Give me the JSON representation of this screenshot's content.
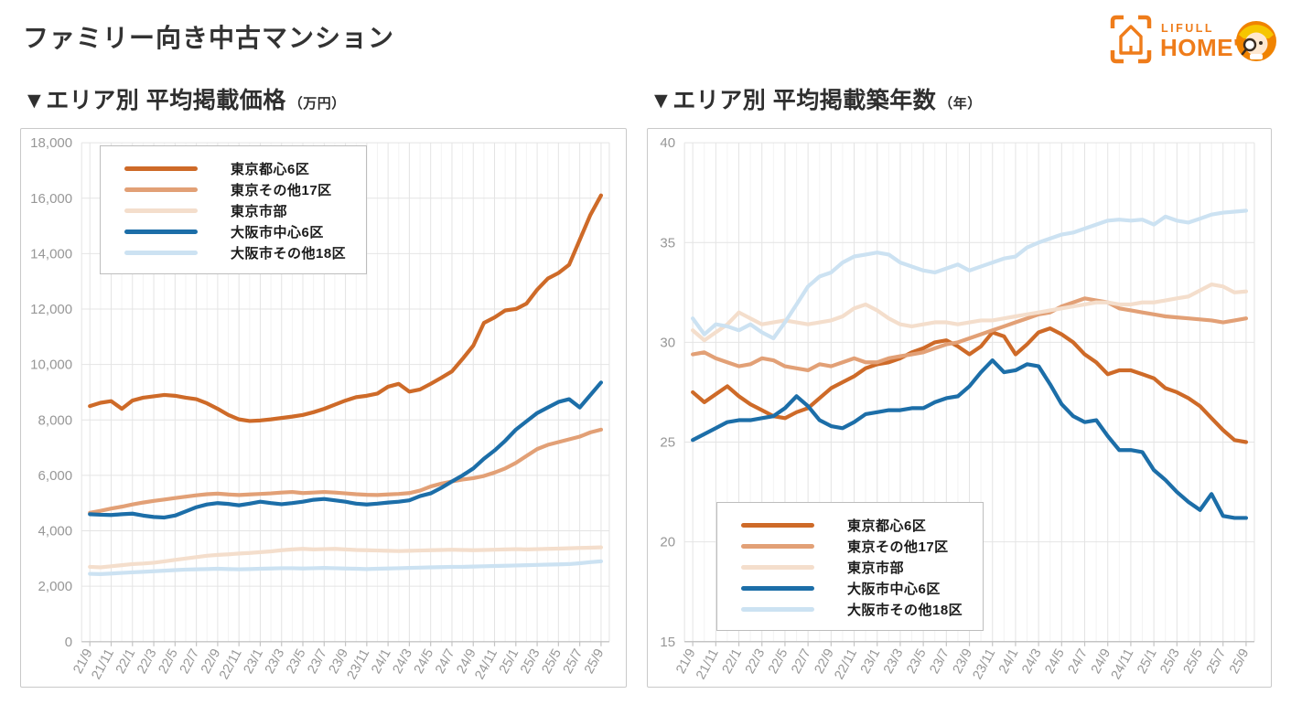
{
  "page": {
    "title": "ファミリー向き中古マンション"
  },
  "logo": {
    "brand_top": "LIFULL",
    "brand_bottom": "HOME'S",
    "brand_color": "#EF7C1A",
    "house_icon": "house-in-brackets-icon",
    "mascot_icon": "homes-kun-mascot-icon"
  },
  "colors": {
    "title_text": "#333333",
    "axis_text": "#979797",
    "grid_major": "#e4e4e4",
    "grid_minor": "#f3f3f3",
    "axis_line": "#c4c4c4",
    "panel_border": "#c9c9c9"
  },
  "chart_data": [
    {
      "type": "line",
      "title": "▼エリア別 平均掲載価格",
      "unit": "（万円）",
      "grid": true,
      "legend_position": "top-left",
      "legend_offset": {
        "x": 86,
        "y": 18
      },
      "ylim": [
        0,
        18000
      ],
      "yticks": [
        {
          "v": 0,
          "t": "0"
        },
        {
          "v": 2000,
          "t": "2,000"
        },
        {
          "v": 4000,
          "t": "4,000"
        },
        {
          "v": 6000,
          "t": "6,000"
        },
        {
          "v": 8000,
          "t": "8,000"
        },
        {
          "v": 10000,
          "t": "10,000"
        },
        {
          "v": 12000,
          "t": "12,000"
        },
        {
          "v": 14000,
          "t": "14,000"
        },
        {
          "v": 16000,
          "t": "16,000"
        },
        {
          "v": 18000,
          "t": "18,000"
        }
      ],
      "x_label_every": 2,
      "x": [
        "21/9",
        "21/10",
        "21/11",
        "21/12",
        "22/1",
        "22/2",
        "22/3",
        "22/4",
        "22/5",
        "22/6",
        "22/7",
        "22/8",
        "22/9",
        "22/10",
        "22/11",
        "22/12",
        "23/1",
        "23/2",
        "23/3",
        "23/4",
        "23/5",
        "23/6",
        "23/7",
        "23/8",
        "23/9",
        "23/10",
        "23/11",
        "23/12",
        "24/1",
        "24/2",
        "24/3",
        "24/4",
        "24/5",
        "24/6",
        "24/7",
        "24/8",
        "24/9",
        "24/10",
        "24/11",
        "24/12",
        "25/1",
        "25/2",
        "25/3",
        "25/4",
        "25/5",
        "25/6",
        "25/7",
        "25/8",
        "25/9"
      ],
      "series": [
        {
          "name": "東京都心6区",
          "color": "#CE6A28",
          "values": [
            8500,
            8620,
            8680,
            8400,
            8700,
            8800,
            8850,
            8900,
            8870,
            8800,
            8750,
            8600,
            8400,
            8180,
            8020,
            7960,
            7980,
            8020,
            8070,
            8120,
            8180,
            8280,
            8400,
            8550,
            8700,
            8820,
            8870,
            8950,
            9200,
            9300,
            9020,
            9100,
            9300,
            9520,
            9750,
            10200,
            10680,
            11500,
            11700,
            11950,
            12000,
            12200,
            12700,
            13100,
            13300,
            13600,
            14500,
            15400,
            16100
          ]
        },
        {
          "name": "東京その他17区",
          "color": "#E2A076",
          "values": [
            4650,
            4720,
            4800,
            4870,
            4950,
            5020,
            5080,
            5130,
            5180,
            5230,
            5280,
            5320,
            5340,
            5310,
            5290,
            5310,
            5330,
            5350,
            5380,
            5400,
            5360,
            5380,
            5400,
            5380,
            5350,
            5320,
            5300,
            5290,
            5310,
            5330,
            5360,
            5450,
            5600,
            5700,
            5780,
            5850,
            5900,
            5980,
            6100,
            6250,
            6450,
            6700,
            6950,
            7100,
            7200,
            7300,
            7400,
            7550,
            7650
          ]
        },
        {
          "name": "東京市部",
          "color": "#F4DECC",
          "values": [
            2700,
            2680,
            2720,
            2760,
            2800,
            2820,
            2850,
            2900,
            2950,
            3000,
            3050,
            3100,
            3130,
            3150,
            3180,
            3200,
            3230,
            3260,
            3300,
            3330,
            3350,
            3330,
            3340,
            3350,
            3330,
            3310,
            3300,
            3290,
            3280,
            3270,
            3280,
            3290,
            3300,
            3310,
            3320,
            3310,
            3300,
            3310,
            3320,
            3330,
            3340,
            3330,
            3340,
            3350,
            3360,
            3370,
            3380,
            3390,
            3400
          ]
        },
        {
          "name": "大阪市中心6区",
          "color": "#1C6EA8",
          "values": [
            4600,
            4580,
            4570,
            4600,
            4620,
            4550,
            4500,
            4480,
            4550,
            4700,
            4850,
            4950,
            5000,
            4970,
            4920,
            4980,
            5050,
            5000,
            4960,
            5000,
            5050,
            5120,
            5150,
            5100,
            5050,
            4980,
            4950,
            4980,
            5020,
            5050,
            5100,
            5250,
            5350,
            5550,
            5780,
            6000,
            6250,
            6600,
            6900,
            7250,
            7650,
            7950,
            8250,
            8450,
            8650,
            8750,
            8450,
            8900,
            9350
          ]
        },
        {
          "name": "大阪市その他18区",
          "color": "#CCE2F2",
          "values": [
            2450,
            2440,
            2460,
            2480,
            2500,
            2520,
            2540,
            2560,
            2580,
            2600,
            2610,
            2620,
            2630,
            2620,
            2610,
            2620,
            2630,
            2640,
            2650,
            2650,
            2640,
            2650,
            2660,
            2650,
            2640,
            2630,
            2620,
            2630,
            2640,
            2650,
            2660,
            2670,
            2680,
            2690,
            2700,
            2700,
            2710,
            2720,
            2730,
            2740,
            2750,
            2760,
            2770,
            2780,
            2790,
            2800,
            2830,
            2870,
            2900
          ]
        }
      ]
    },
    {
      "type": "line",
      "title": "▼エリア別 平均掲載築年数",
      "unit": "（年）",
      "grid": true,
      "legend_position": "bottom-left",
      "legend_offset": {
        "x": 75,
        "y": 408
      },
      "ylim": [
        15,
        40
      ],
      "yticks": [
        {
          "v": 15,
          "t": "15"
        },
        {
          "v": 20,
          "t": "20"
        },
        {
          "v": 25,
          "t": "25"
        },
        {
          "v": 30,
          "t": "30"
        },
        {
          "v": 35,
          "t": "35"
        },
        {
          "v": 40,
          "t": "40"
        }
      ],
      "x_label_every": 2,
      "x": [
        "21/9",
        "21/10",
        "21/11",
        "21/12",
        "22/1",
        "22/2",
        "22/3",
        "22/4",
        "22/5",
        "22/6",
        "22/7",
        "22/8",
        "22/9",
        "22/10",
        "22/11",
        "22/12",
        "23/1",
        "23/2",
        "23/3",
        "23/4",
        "23/5",
        "23/6",
        "23/7",
        "23/8",
        "23/9",
        "23/10",
        "23/11",
        "23/12",
        "24/1",
        "24/2",
        "24/3",
        "24/4",
        "24/5",
        "24/6",
        "24/7",
        "24/8",
        "24/9",
        "24/10",
        "24/11",
        "24/12",
        "25/1",
        "25/2",
        "25/3",
        "25/4",
        "25/5",
        "25/6",
        "25/7",
        "25/8",
        "25/9"
      ],
      "series": [
        {
          "name": "東京都心6区",
          "color": "#CE6A28",
          "values": [
            27.5,
            27.0,
            27.4,
            27.8,
            27.3,
            26.9,
            26.6,
            26.3,
            26.2,
            26.5,
            26.7,
            27.2,
            27.7,
            28.0,
            28.3,
            28.7,
            28.9,
            29.0,
            29.2,
            29.5,
            29.7,
            30.0,
            30.1,
            29.8,
            29.4,
            29.8,
            30.5,
            30.3,
            29.4,
            29.9,
            30.5,
            30.7,
            30.4,
            30.0,
            29.4,
            29.0,
            28.4,
            28.6,
            28.6,
            28.4,
            28.2,
            27.7,
            27.5,
            27.2,
            26.8,
            26.2,
            25.6,
            25.1,
            25.0
          ]
        },
        {
          "name": "東京その他17区",
          "color": "#E2A076",
          "values": [
            29.4,
            29.5,
            29.2,
            29.0,
            28.8,
            28.9,
            29.2,
            29.1,
            28.8,
            28.7,
            28.6,
            28.9,
            28.8,
            29.0,
            29.2,
            29.0,
            29.0,
            29.2,
            29.3,
            29.4,
            29.5,
            29.7,
            29.9,
            30.0,
            30.2,
            30.4,
            30.6,
            30.8,
            31.0,
            31.2,
            31.4,
            31.5,
            31.8,
            32.0,
            32.2,
            32.1,
            32.0,
            31.7,
            31.6,
            31.5,
            31.4,
            31.3,
            31.25,
            31.2,
            31.15,
            31.1,
            31.0,
            31.1,
            31.2
          ]
        },
        {
          "name": "東京市部",
          "color": "#F4DECC",
          "values": [
            30.6,
            30.1,
            30.5,
            30.9,
            31.5,
            31.2,
            30.9,
            31.0,
            31.1,
            31.0,
            30.9,
            31.0,
            31.1,
            31.3,
            31.7,
            31.9,
            31.6,
            31.2,
            30.9,
            30.8,
            30.9,
            31.0,
            31.0,
            30.9,
            31.0,
            31.1,
            31.1,
            31.2,
            31.3,
            31.4,
            31.5,
            31.6,
            31.7,
            31.8,
            31.9,
            32.0,
            32.0,
            31.9,
            31.9,
            32.0,
            32.0,
            32.1,
            32.2,
            32.3,
            32.6,
            32.9,
            32.8,
            32.5,
            32.55
          ]
        },
        {
          "name": "大阪市中心6区",
          "color": "#1C6EA8",
          "values": [
            25.1,
            25.4,
            25.7,
            26.0,
            26.1,
            26.1,
            26.2,
            26.3,
            26.7,
            27.3,
            26.8,
            26.1,
            25.8,
            25.7,
            26.0,
            26.4,
            26.5,
            26.6,
            26.6,
            26.7,
            26.7,
            27.0,
            27.2,
            27.3,
            27.8,
            28.5,
            29.1,
            28.5,
            28.6,
            28.9,
            28.8,
            27.9,
            26.9,
            26.3,
            26.0,
            26.1,
            25.3,
            24.6,
            24.6,
            24.5,
            23.6,
            23.1,
            22.5,
            22.0,
            21.6,
            22.4,
            21.3,
            21.2,
            21.2
          ]
        },
        {
          "name": "大阪市その他18区",
          "color": "#CCE2F2",
          "values": [
            31.2,
            30.4,
            30.9,
            30.8,
            30.6,
            30.9,
            30.5,
            30.2,
            31.0,
            31.9,
            32.8,
            33.3,
            33.5,
            34.0,
            34.3,
            34.4,
            34.5,
            34.4,
            34.0,
            33.8,
            33.6,
            33.5,
            33.7,
            33.9,
            33.6,
            33.8,
            34.0,
            34.2,
            34.3,
            34.75,
            35.0,
            35.2,
            35.4,
            35.5,
            35.7,
            35.9,
            36.1,
            36.15,
            36.1,
            36.15,
            35.9,
            36.3,
            36.1,
            36.0,
            36.2,
            36.4,
            36.5,
            36.55,
            36.6
          ]
        }
      ]
    }
  ]
}
